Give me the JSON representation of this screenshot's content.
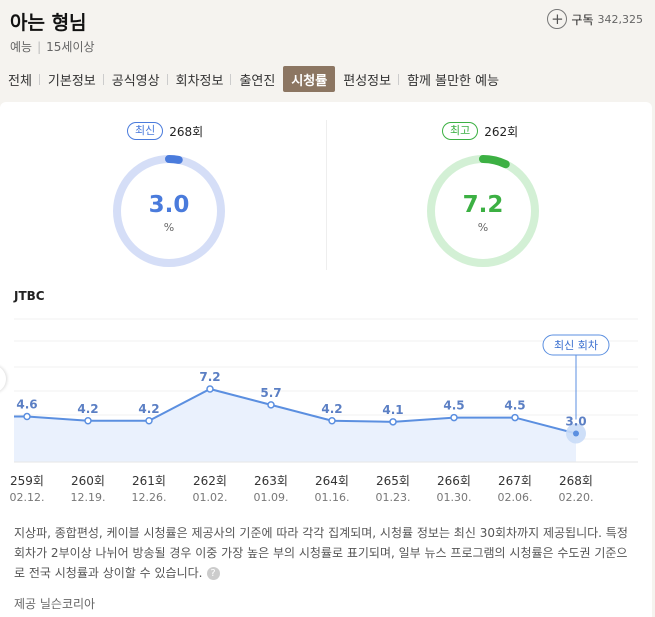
{
  "program": {
    "title": "아는 형님",
    "genre": "예능",
    "rating": "15세이상",
    "subscribe_label": "구독",
    "subscribe_count": "342,325"
  },
  "tabs": [
    {
      "label": "전체"
    },
    {
      "label": "기본정보"
    },
    {
      "label": "공식영상"
    },
    {
      "label": "회차정보"
    },
    {
      "label": "출연진"
    },
    {
      "label": "시청률",
      "active": true
    },
    {
      "label": "편성정보"
    },
    {
      "label": "함께 볼만한 예능"
    }
  ],
  "latest": {
    "badge": "최신",
    "episode": "268회",
    "value": "3.0",
    "unit": "%",
    "fraction": 0.03,
    "color": "#4a7bdc",
    "track": "#d5def7"
  },
  "best": {
    "badge": "최고",
    "episode": "262회",
    "value": "7.2",
    "unit": "%",
    "fraction": 0.072,
    "color": "#3cb043",
    "track": "#d3f0d5"
  },
  "broadcaster": "JTBC",
  "chart_data": {
    "type": "line",
    "x": [
      "259회",
      "260회",
      "261회",
      "262회",
      "263회",
      "264회",
      "265회",
      "266회",
      "267회",
      "268회"
    ],
    "dates": [
      "02.12.",
      "12.19.",
      "12.26.",
      "01.02.",
      "01.09.",
      "01.16.",
      "01.23.",
      "01.30.",
      "02.06.",
      "02.20."
    ],
    "series": [
      {
        "values": [
          4.6,
          4.2,
          4.2,
          7.2,
          5.7,
          4.2,
          4.1,
          4.5,
          4.5,
          3.0
        ]
      }
    ],
    "labels": [
      "4.6",
      "4.2",
      "4.2",
      "7.2",
      "5.7",
      "4.2",
      "4.1",
      "4.5",
      "4.5",
      "3.0"
    ],
    "ylim": [
      -3,
      14
    ],
    "grid": true,
    "latest_callout": "최신 회차",
    "line_color": "#5b8fe0",
    "fill_color": "#eaf1fd"
  },
  "notice": {
    "text": "지상파, 종합편성, 케이블 시청률은 제공사의 기준에 따라 각각 집계되며, 시청률 정보는 최신 30회차까지 제공됩니다. 특정 회차가 2부이상 나뉘어 방송될 경우 이중 가장 높은 부의 시청률로 표기되며, 일부 뉴스 프로그램의 시청률은 수도권 기준으로 전국 시청률과 상이할 수 있습니다.",
    "help_icon": "?",
    "provider": "제공 닐슨코리아"
  }
}
